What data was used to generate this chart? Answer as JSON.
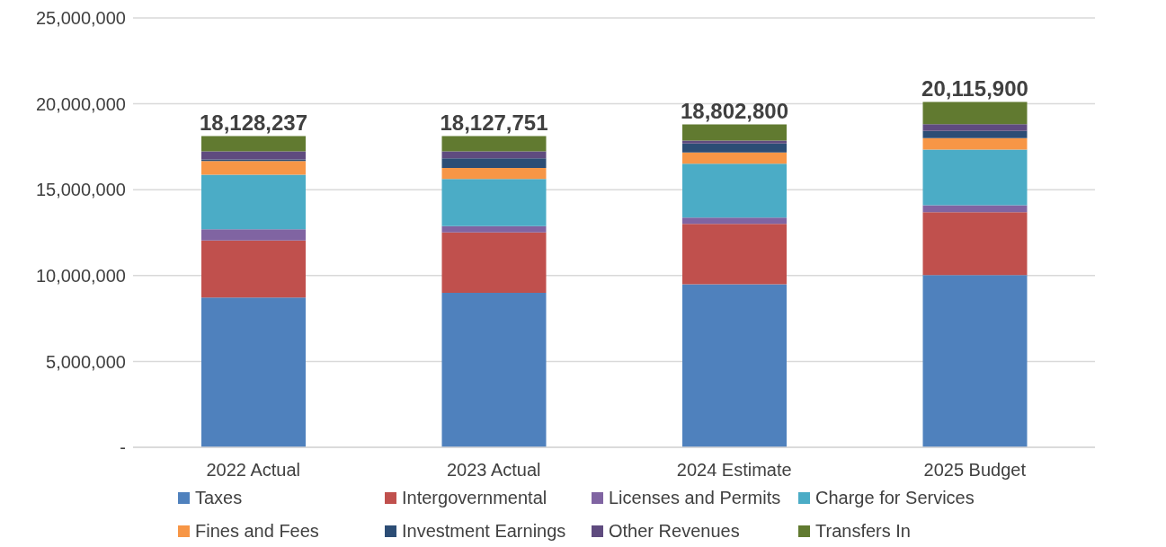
{
  "chart_data": {
    "type": "bar",
    "stacked": true,
    "categories": [
      "2022 Actual",
      "2023 Actual",
      "2024 Estimate",
      "2025 Budget"
    ],
    "series": [
      {
        "name": "Taxes",
        "color": "#4f81bd",
        "values": [
          8720000,
          9000000,
          9490000,
          10030000
        ]
      },
      {
        "name": "Intergovernmental",
        "color": "#c0504d",
        "values": [
          3320000,
          3510000,
          3520000,
          3660000
        ]
      },
      {
        "name": "Licenses and Permits",
        "color": "#8064a2",
        "values": [
          660000,
          370000,
          370000,
          400000
        ]
      },
      {
        "name": "Charge for Services",
        "color": "#4bacc6",
        "values": [
          3170000,
          2740000,
          3140000,
          3250000
        ]
      },
      {
        "name": "Fines and Fees",
        "color": "#f79646",
        "values": [
          800000,
          640000,
          650000,
          670000
        ]
      },
      {
        "name": "Investment Earnings",
        "color": "#2c4d75",
        "values": [
          90000,
          570000,
          520000,
          410000
        ]
      },
      {
        "name": "Other Revenues",
        "color": "#5f4b7f",
        "values": [
          470000,
          400000,
          170000,
          390000
        ]
      },
      {
        "name": "Transfers In",
        "color": "#617a30",
        "values": [
          898237,
          897751,
          942800,
          1305900
        ]
      }
    ],
    "totals": [
      "18,128,237",
      "18,127,751",
      "18,802,800",
      "20,115,900"
    ],
    "ylim": [
      0,
      25000000
    ],
    "yticks": [
      {
        "value": 0,
        "label": "-"
      },
      {
        "value": 5000000,
        "label": "5,000,000"
      },
      {
        "value": 10000000,
        "label": "10,000,000"
      },
      {
        "value": 15000000,
        "label": "15,000,000"
      },
      {
        "value": 20000000,
        "label": "20,000,000"
      },
      {
        "value": 25000000,
        "label": "25,000,000"
      }
    ],
    "grid": "y",
    "legend": "bottom"
  }
}
